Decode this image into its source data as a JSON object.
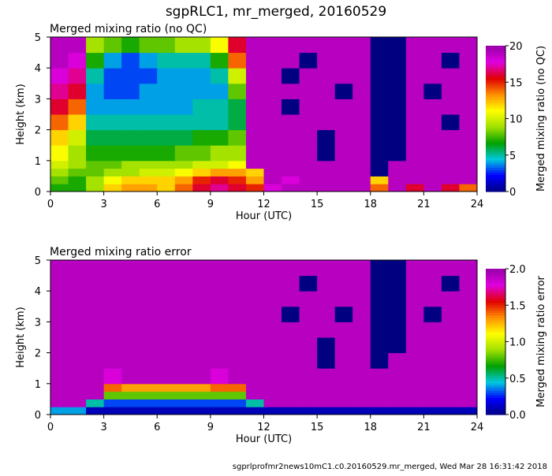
{
  "title": "sgpRLC1, mr_merged, 20160529",
  "footer": "sgprlprofmr2news10mC1.c0.20160529.mr_merged, Wed Mar 28 16:31:42 2018",
  "colormap": [
    "#000080",
    "#0000ff",
    "#00c8e0",
    "#00a000",
    "#a0e000",
    "#ffff00",
    "#ff9000",
    "#e00000",
    "#e000e0",
    "#9800a8"
  ],
  "chart_data": [
    {
      "type": "heatmap",
      "title": "Merged mixing ratio (no QC)",
      "xlabel": "Hour (UTC)",
      "ylabel": "Height (km)",
      "colorbar_label": "Merged mixing ratio (no QC)",
      "xlim": [
        0,
        24
      ],
      "ylim": [
        0,
        5
      ],
      "xticks": [
        0,
        3,
        6,
        9,
        12,
        15,
        18,
        21,
        24
      ],
      "yticks": [
        0,
        1,
        2,
        3,
        4,
        5
      ],
      "clim": [
        0,
        20
      ],
      "cticks": [
        0,
        5,
        10,
        15,
        20
      ],
      "x_edges": [
        0,
        1,
        2,
        3,
        4,
        5,
        6,
        7,
        8,
        9,
        10,
        11,
        12,
        13,
        14,
        15,
        16,
        17,
        18,
        19,
        20,
        21,
        22,
        23,
        24
      ],
      "y_edges": [
        0,
        0.25,
        0.5,
        0.75,
        1,
        1.5,
        2,
        2.5,
        3,
        3.5,
        4,
        4.5,
        5
      ],
      "values": [
        [
          7,
          7,
          9,
          12,
          13,
          13,
          12,
          14,
          16,
          17,
          16,
          15,
          18,
          19,
          19,
          19,
          19,
          19,
          14,
          19,
          16,
          19,
          16,
          14
        ],
        [
          8,
          7,
          9,
          11,
          12,
          12,
          12,
          13,
          15,
          16,
          15,
          13,
          19,
          18,
          19,
          19,
          19,
          19,
          12,
          19,
          19,
          19,
          19,
          19
        ],
        [
          9,
          8,
          8,
          9,
          9,
          10,
          10,
          11,
          12,
          13,
          13,
          12,
          19,
          19,
          19,
          19,
          19,
          19,
          0,
          19,
          19,
          19,
          19,
          19
        ],
        [
          10,
          9,
          8,
          8,
          9,
          9,
          9,
          9,
          10,
          10,
          11,
          19,
          19,
          19,
          19,
          19,
          19,
          19,
          0,
          19,
          19,
          19,
          19,
          19
        ],
        [
          11,
          9,
          7,
          7,
          7,
          7,
          7,
          8,
          8,
          9,
          9,
          19,
          19,
          19,
          19,
          0,
          19,
          19,
          0,
          0,
          19,
          19,
          19,
          19
        ],
        [
          12,
          10,
          6,
          6,
          6,
          6,
          6,
          6,
          7,
          7,
          8,
          19,
          19,
          19,
          19,
          0,
          19,
          19,
          0,
          0,
          19,
          19,
          19,
          19
        ],
        [
          14,
          12,
          5,
          5,
          5,
          5,
          5,
          5,
          5,
          5,
          6,
          19,
          19,
          19,
          19,
          19,
          19,
          19,
          0,
          0,
          19,
          19,
          0,
          19
        ],
        [
          16,
          14,
          4,
          4,
          4,
          4,
          4,
          4,
          5,
          5,
          6,
          19,
          19,
          0,
          19,
          19,
          19,
          19,
          0,
          0,
          19,
          19,
          19,
          19
        ],
        [
          17,
          16,
          4,
          3,
          3,
          4,
          4,
          4,
          4,
          4,
          8,
          19,
          19,
          19,
          19,
          19,
          0,
          19,
          0,
          0,
          19,
          0,
          19,
          19
        ],
        [
          18,
          17,
          5,
          3,
          3,
          3,
          4,
          4,
          4,
          5,
          10,
          19,
          19,
          0,
          19,
          19,
          19,
          19,
          0,
          0,
          19,
          19,
          19,
          19
        ],
        [
          19,
          18,
          7,
          4,
          3,
          4,
          5,
          5,
          5,
          7,
          14,
          19,
          19,
          19,
          0,
          19,
          19,
          19,
          0,
          0,
          19,
          19,
          0,
          19
        ],
        [
          19,
          19,
          9,
          8,
          7,
          8,
          8,
          9,
          9,
          11,
          16,
          19,
          19,
          19,
          19,
          19,
          19,
          19,
          0,
          0,
          19,
          19,
          19,
          19
        ]
      ]
    },
    {
      "type": "heatmap",
      "title": "Merged mixing ratio error",
      "xlabel": "Hour (UTC)",
      "ylabel": "Height (km)",
      "colorbar_label": "Merged mixing ratio error",
      "xlim": [
        0,
        24
      ],
      "ylim": [
        0,
        5
      ],
      "xticks": [
        0,
        3,
        6,
        9,
        12,
        15,
        18,
        21,
        24
      ],
      "yticks": [
        0,
        1,
        2,
        3,
        4,
        5
      ],
      "clim": [
        0,
        2
      ],
      "cticks": [
        "0.0",
        "0.5",
        "1.0",
        "1.5",
        "2.0"
      ],
      "x_edges": [
        0,
        1,
        2,
        3,
        4,
        5,
        6,
        7,
        8,
        9,
        10,
        11,
        12,
        13,
        14,
        15,
        16,
        17,
        18,
        19,
        20,
        21,
        22,
        23,
        24
      ],
      "y_edges": [
        0,
        0.25,
        0.5,
        0.75,
        1,
        1.5,
        2,
        2.5,
        3,
        3.5,
        4,
        4.5,
        5
      ],
      "values": [
        [
          0.4,
          0.4,
          0.1,
          0.1,
          0.1,
          0.1,
          0.1,
          0.1,
          0.1,
          0.1,
          0.1,
          0.1,
          0.1,
          0.1,
          0.1,
          0.1,
          0.1,
          0.1,
          0.1,
          0.1,
          0.1,
          0.1,
          0.1,
          0.1
        ],
        [
          1.9,
          1.9,
          0.5,
          0.3,
          0.3,
          0.3,
          0.3,
          0.3,
          0.3,
          0.3,
          0.3,
          0.5,
          1.9,
          1.9,
          1.9,
          1.9,
          1.9,
          1.9,
          1.9,
          1.9,
          1.9,
          1.9,
          1.9,
          1.9
        ],
        [
          1.9,
          1.9,
          1.9,
          0.8,
          0.8,
          0.8,
          0.8,
          0.8,
          0.8,
          0.8,
          0.8,
          1.9,
          1.9,
          1.9,
          1.9,
          1.9,
          1.9,
          1.9,
          1.9,
          1.9,
          1.9,
          1.9,
          1.9,
          1.9
        ],
        [
          1.9,
          1.9,
          1.9,
          1.4,
          1.3,
          1.3,
          1.3,
          1.3,
          1.3,
          1.4,
          1.4,
          1.9,
          1.9,
          1.9,
          1.9,
          1.9,
          1.9,
          1.9,
          1.9,
          1.9,
          1.9,
          1.9,
          1.9,
          1.9
        ],
        [
          1.9,
          1.9,
          1.9,
          1.8,
          1.9,
          1.9,
          1.9,
          1.9,
          1.9,
          1.8,
          1.9,
          1.9,
          1.9,
          1.9,
          1.9,
          1.9,
          1.9,
          1.9,
          1.9,
          1.9,
          1.9,
          1.9,
          1.9,
          1.9
        ],
        [
          1.9,
          1.9,
          1.9,
          1.9,
          1.9,
          1.9,
          1.9,
          1.9,
          1.9,
          1.9,
          1.9,
          1.9,
          1.9,
          1.9,
          1.9,
          0.0,
          1.9,
          1.9,
          0.0,
          1.9,
          1.9,
          1.9,
          1.9,
          1.9
        ],
        [
          1.9,
          1.9,
          1.9,
          1.9,
          1.9,
          1.9,
          1.9,
          1.9,
          1.9,
          1.9,
          1.9,
          1.9,
          1.9,
          1.9,
          1.9,
          0.0,
          1.9,
          1.9,
          0.0,
          0.0,
          1.9,
          1.9,
          1.9,
          1.9
        ],
        [
          1.9,
          1.9,
          1.9,
          1.9,
          1.9,
          1.9,
          1.9,
          1.9,
          1.9,
          1.9,
          1.9,
          1.9,
          1.9,
          1.9,
          1.9,
          1.9,
          1.9,
          1.9,
          0.0,
          0.0,
          1.9,
          1.9,
          1.9,
          1.9
        ],
        [
          1.9,
          1.9,
          1.9,
          1.9,
          1.9,
          1.9,
          1.9,
          1.9,
          1.9,
          1.9,
          1.9,
          1.9,
          1.9,
          0.0,
          1.9,
          1.9,
          0.0,
          1.9,
          0.0,
          0.0,
          1.9,
          0.0,
          1.9,
          1.9
        ],
        [
          1.9,
          1.9,
          1.9,
          1.9,
          1.9,
          1.9,
          1.9,
          1.9,
          1.9,
          1.9,
          1.9,
          1.9,
          1.9,
          1.9,
          1.9,
          1.9,
          1.9,
          1.9,
          0.0,
          0.0,
          1.9,
          1.9,
          1.9,
          1.9
        ],
        [
          1.9,
          1.9,
          1.9,
          1.9,
          1.9,
          1.9,
          1.9,
          1.9,
          1.9,
          1.9,
          1.9,
          1.9,
          1.9,
          1.9,
          0.0,
          1.9,
          1.9,
          1.9,
          0.0,
          0.0,
          1.9,
          1.9,
          0.0,
          1.9
        ],
        [
          1.9,
          1.9,
          1.9,
          1.9,
          1.9,
          1.9,
          1.9,
          1.9,
          1.9,
          1.9,
          1.9,
          1.9,
          1.9,
          1.9,
          1.9,
          1.9,
          1.9,
          1.9,
          0.0,
          0.0,
          1.9,
          1.9,
          1.9,
          1.9
        ]
      ]
    }
  ]
}
